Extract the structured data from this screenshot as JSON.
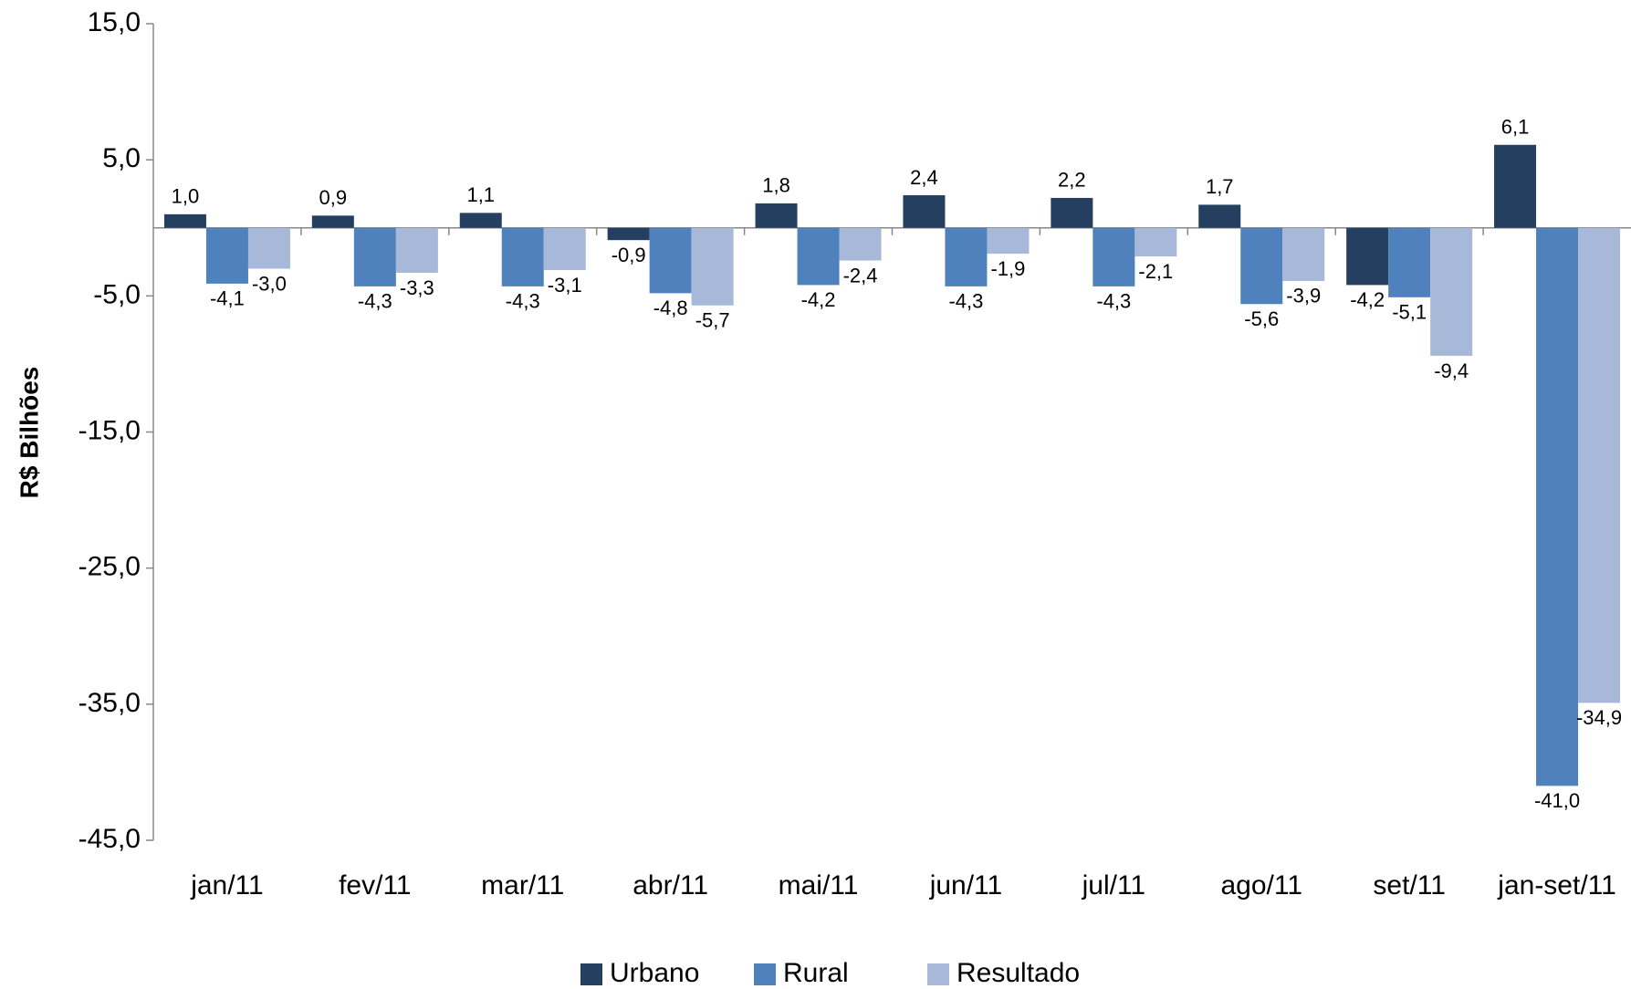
{
  "chart_data": {
    "type": "bar",
    "y_label": "R$ Bilhões",
    "categories": [
      "jan/11",
      "fev/11",
      "mar/11",
      "abr/11",
      "mai/11",
      "jun/11",
      "jul/11",
      "ago/11",
      "set/11",
      "jan-set/11"
    ],
    "series": [
      {
        "name": "Urbano",
        "color": "#243f60",
        "values": [
          1.0,
          0.9,
          1.1,
          -0.9,
          1.8,
          2.4,
          2.2,
          1.7,
          -4.2,
          6.1
        ],
        "value_labels": [
          "1,0",
          "0,9",
          "1,1",
          "-0,9",
          "1,8",
          "2,4",
          "2,2",
          "1,7",
          "-4,2",
          "6,1"
        ]
      },
      {
        "name": "Rural",
        "color": "#4f81bd",
        "values": [
          -4.1,
          -4.3,
          -4.3,
          -4.8,
          -4.2,
          -4.3,
          -4.3,
          -5.6,
          -5.1,
          -41.0
        ],
        "value_labels": [
          "-4,1",
          "-4,3",
          "-4,3",
          "-4,8",
          "-4,2",
          "-4,3",
          "-4,3",
          "-5,6",
          "-5,1",
          "-41,0"
        ]
      },
      {
        "name": "Resultado",
        "color": "#a7b8d9",
        "values": [
          -3.0,
          -3.3,
          -3.1,
          -5.7,
          -2.4,
          -1.9,
          -2.1,
          -3.9,
          -9.4,
          -34.9
        ],
        "value_labels": [
          "-3,0",
          "-3,3",
          "-3,1",
          "-5,7",
          "-2,4",
          "-1,9",
          "-2,1",
          "-3,9",
          "-9,4",
          "-34,9"
        ]
      }
    ],
    "ylim": [
      -45,
      15
    ],
    "yticks": [
      {
        "value": -45,
        "label": "-45,0"
      },
      {
        "value": -35,
        "label": "-35,0"
      },
      {
        "value": -25,
        "label": "-25,0"
      },
      {
        "value": -15,
        "label": "-15,0"
      },
      {
        "value": -5,
        "label": "-5,0"
      },
      {
        "value": 5,
        "label": "5,0"
      },
      {
        "value": 15,
        "label": "15,0"
      }
    ],
    "legend": "bottom"
  }
}
